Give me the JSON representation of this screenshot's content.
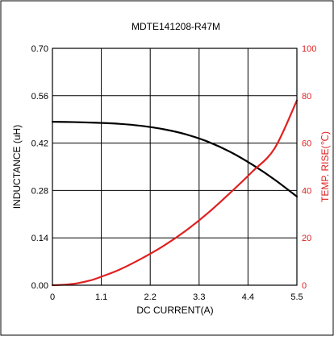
{
  "chart_data": {
    "type": "line",
    "title": "MDTE141208-R47M",
    "xlabel": "DC CURRENT(A)",
    "ylabel": "INDUCTANCE (uH)",
    "y2label": "TEMP. RISE(℃)",
    "xlim": [
      0,
      5.5
    ],
    "ylim": [
      0,
      0.7
    ],
    "y2lim": [
      0,
      100
    ],
    "x_ticks": [
      "0",
      "1.1",
      "2.2",
      "3.3",
      "4.4",
      "5.5"
    ],
    "y_ticks": [
      "0.00",
      "0.14",
      "0.28",
      "0.42",
      "0.56",
      "0.70"
    ],
    "y2_ticks": [
      "0",
      "20",
      "40",
      "60",
      "80",
      "100"
    ],
    "grid": true,
    "legend": "none",
    "series": [
      {
        "axis": "left",
        "color": "#000000",
        "x": [
          0,
          0.5,
          1.0,
          1.5,
          2.0,
          2.5,
          3.0,
          3.5,
          4.0,
          4.5,
          5.0,
          5.5
        ],
        "y": [
          0.483,
          0.482,
          0.48,
          0.477,
          0.471,
          0.461,
          0.446,
          0.424,
          0.394,
          0.356,
          0.312,
          0.262
        ]
      },
      {
        "axis": "right",
        "color": "#e02020",
        "x": [
          0,
          0.25,
          0.55,
          0.85,
          1.1,
          1.5,
          2.0,
          2.5,
          3.0,
          3.5,
          4.0,
          4.5,
          5.0,
          5.5
        ],
        "y": [
          0,
          0.2,
          0.8,
          2.0,
          3.6,
          6.5,
          11.2,
          16.6,
          23.0,
          30.5,
          39.0,
          48.0,
          57.8,
          78.0
        ]
      }
    ]
  }
}
